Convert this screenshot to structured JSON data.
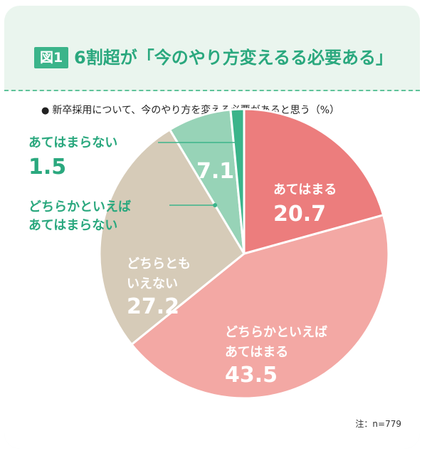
{
  "header": {
    "figure_label": "図1",
    "title": "6割超が「今のやり方変えるる必要ある」"
  },
  "subtitle": "新卒採用について、今のやり方を変える必要があると思う（%）",
  "note": "注：n=779",
  "colors": {
    "green_accent": "#3bb48a",
    "text_green": "#2aa87e",
    "card_bg": "#eaf5ee"
  },
  "chart_data": {
    "type": "pie",
    "unit": "%",
    "slices": [
      {
        "label_lines": [
          "あてはまる"
        ],
        "value": 20.7,
        "display": "20.7",
        "color": "#ec7d7d"
      },
      {
        "label_lines": [
          "どちらかといえば",
          "あてはまる"
        ],
        "value": 43.5,
        "display": "43.5",
        "color": "#f3a8a4"
      },
      {
        "label_lines": [
          "どちらとも",
          "いえない"
        ],
        "value": 27.2,
        "display": "27.2",
        "color": "#d6cbb8"
      },
      {
        "label_lines": [
          "どちらかといえば",
          "あてはまらない"
        ],
        "value": 7.1,
        "display": "7.1",
        "color": "#97d3b7"
      },
      {
        "label_lines": [
          "あてはまらない"
        ],
        "value": 1.5,
        "display": "1.5",
        "color": "#3bb48a"
      }
    ]
  }
}
